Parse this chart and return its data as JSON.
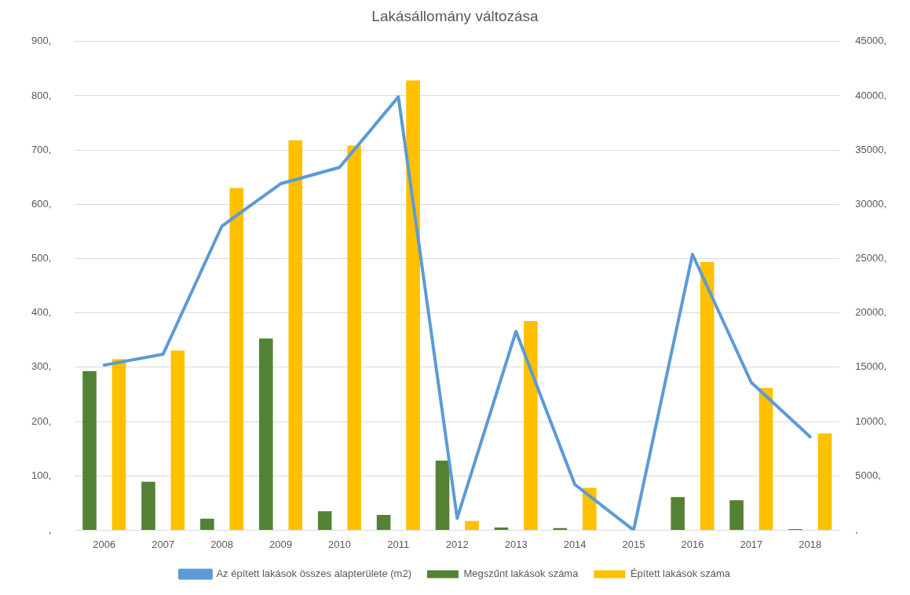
{
  "chart_data": {
    "type": "bar",
    "title": "Lakásállomány változása",
    "categories": [
      "2006",
      "2007",
      "2008",
      "2009",
      "2010",
      "2011",
      "2012",
      "2013",
      "2014",
      "2015",
      "2016",
      "2017",
      "2018"
    ],
    "series": [
      {
        "name": "Megszűnt lakások száma",
        "color": "#548235",
        "values": [
          293,
          89,
          21,
          353,
          35,
          28,
          128,
          5,
          4,
          0,
          61,
          55,
          2
        ]
      },
      {
        "name": "Épített lakások száma",
        "color": "#ffc000",
        "values": [
          315,
          331,
          630,
          718,
          708,
          828,
          17,
          385,
          78,
          0,
          494,
          262,
          178
        ]
      },
      {
        "name": "Az épített lakások összes alapterülete (m2)",
        "type": "line",
        "axis": "y2",
        "color": "#5b9bd5",
        "values": [
          15200,
          16200,
          28000,
          31900,
          33400,
          39900,
          1100,
          18300,
          4200,
          0,
          25400,
          13600,
          8600
        ]
      }
    ],
    "ylim": [
      0,
      900
    ],
    "yticks": [
      {
        "value": 0,
        "label": ","
      },
      {
        "value": 100,
        "label": "100,"
      },
      {
        "value": 200,
        "label": "200,"
      },
      {
        "value": 300,
        "label": "300,"
      },
      {
        "value": 400,
        "label": "400,"
      },
      {
        "value": 500,
        "label": "500,"
      },
      {
        "value": 600,
        "label": "600,"
      },
      {
        "value": 700,
        "label": "700,"
      },
      {
        "value": 800,
        "label": "800,"
      },
      {
        "value": 900,
        "label": "900,"
      }
    ],
    "y2lim": [
      0,
      45000
    ],
    "y2ticks": [
      {
        "value": 0,
        "label": ","
      },
      {
        "value": 5000,
        "label": "5000,"
      },
      {
        "value": 10000,
        "label": "10000,"
      },
      {
        "value": 15000,
        "label": "15000,"
      },
      {
        "value": 20000,
        "label": "20000,"
      },
      {
        "value": 25000,
        "label": "25000,"
      },
      {
        "value": 30000,
        "label": "30000,"
      },
      {
        "value": 35000,
        "label": "35000,"
      },
      {
        "value": 40000,
        "label": "40000,"
      },
      {
        "value": 45000,
        "label": "45000,"
      }
    ],
    "grid": "y",
    "legend": "bottom",
    "marker": "none"
  }
}
